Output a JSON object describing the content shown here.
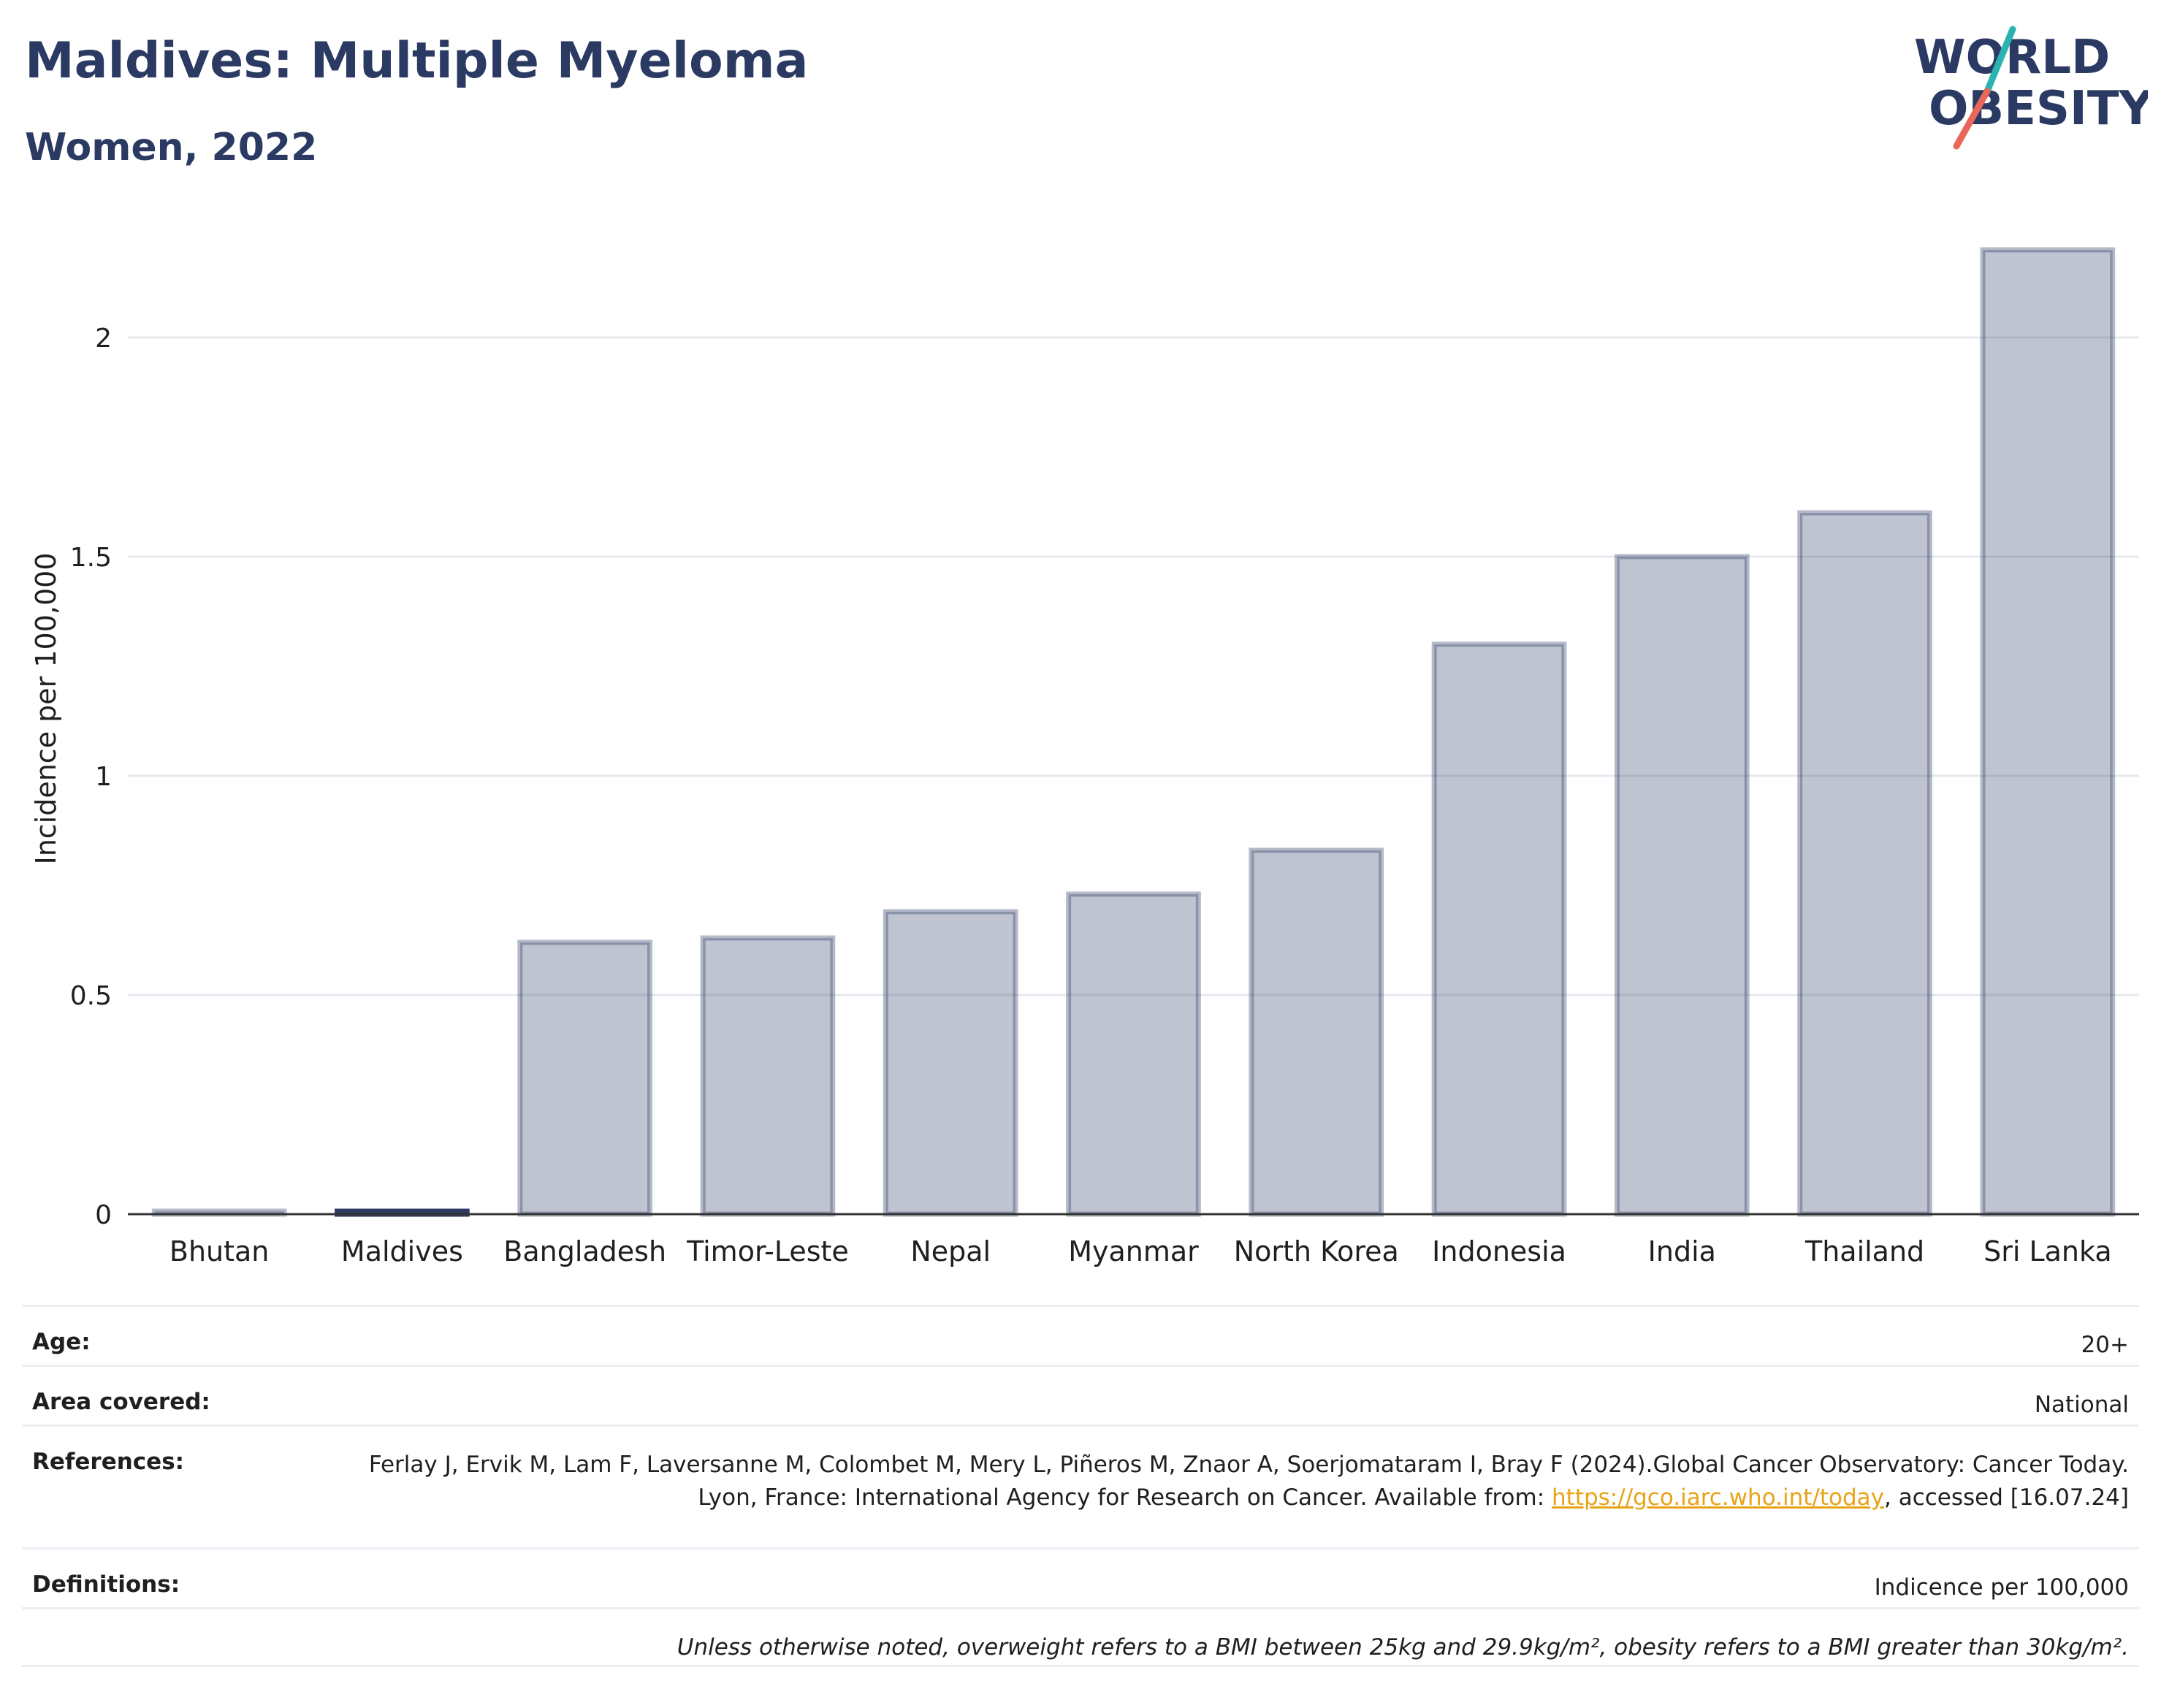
{
  "title": "Maldives: Multiple Myeloma",
  "subtitle": "Women, 2022",
  "logo": {
    "line1": "WORLD",
    "line2": "OBESITY",
    "accent_teal": "#2bb3b1",
    "accent_red": "#e9675a",
    "color": "#2b3a63"
  },
  "chart_data": {
    "type": "bar",
    "categories": [
      "Bhutan",
      "Maldives",
      "Bangladesh",
      "Timor-Leste",
      "Nepal",
      "Myanmar",
      "North Korea",
      "Indonesia",
      "India",
      "Thailand",
      "Sri Lanka"
    ],
    "values": [
      0,
      0,
      0.62,
      0.63,
      0.69,
      0.73,
      0.83,
      1.3,
      1.5,
      1.6,
      2.2
    ],
    "highlight": "Maldives",
    "ylabel": "Incidence per 100,000",
    "xlabel": "",
    "ylim": [
      0,
      2.3
    ],
    "yticks": [
      0,
      0.5,
      1,
      1.5,
      2
    ],
    "ytick_labels": [
      "0",
      "0.5",
      "1",
      "1.5",
      "2"
    ],
    "grid": true,
    "bar_color": "#2b3a63",
    "bar_fill_opacity": 0.3,
    "highlight_color": "#2b3a63"
  },
  "meta": {
    "age_label": "Age:",
    "age_value": "20+",
    "area_label": "Area covered:",
    "area_value": "National",
    "references_label": "References:",
    "references_text_1": "Ferlay J, Ervik M, Lam F, Laversanne M, Colombet M, Mery L, Piñeros M, Znaor A, Soerjomataram I, Bray F (2024).Global Cancer Observatory: Cancer Today. Lyon, France: International Agency for Research on Cancer. Available from: ",
    "references_link": "https://gco.iarc.who.int/today",
    "references_text_2": ", accessed [16.07.24]",
    "definitions_label": "Definitions:",
    "definitions_value": "Indicence per 100,000",
    "note": "Unless otherwise noted, overweight refers to a BMI between 25kg and 29.9kg/m², obesity refers to a BMI greater than 30kg/m²."
  }
}
